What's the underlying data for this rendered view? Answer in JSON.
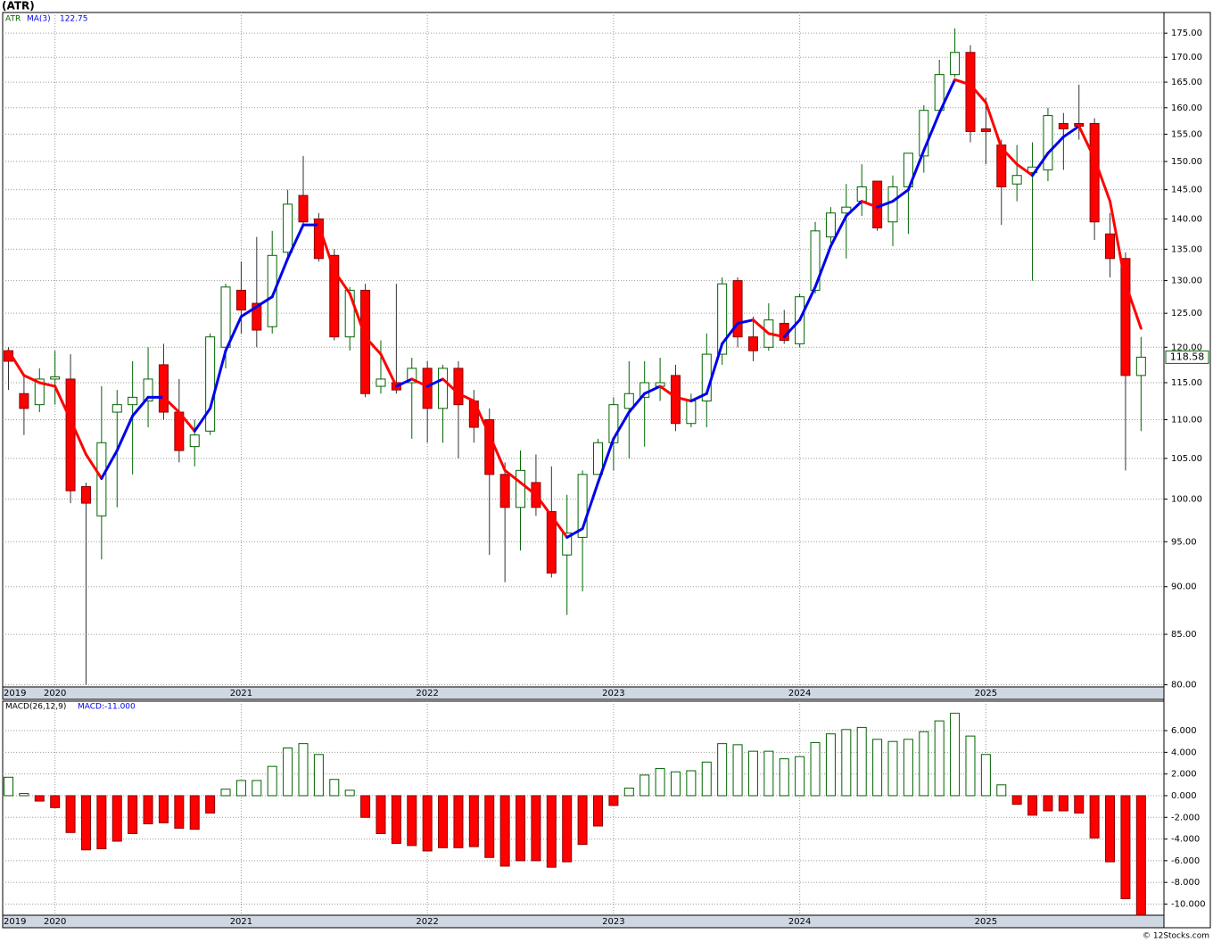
{
  "chart_data": {
    "type": "candlestick",
    "title": "(ATR)",
    "symbol": "ATR",
    "categories": [
      "2019",
      null,
      null,
      "2020",
      null,
      null,
      null,
      null,
      null,
      null,
      null,
      null,
      null,
      null,
      null,
      "2021",
      null,
      null,
      null,
      null,
      null,
      null,
      null,
      null,
      null,
      null,
      null,
      "2022",
      null,
      null,
      null,
      null,
      null,
      null,
      null,
      null,
      null,
      null,
      null,
      "2023",
      null,
      null,
      null,
      null,
      null,
      null,
      null,
      null,
      null,
      null,
      null,
      "2024",
      null,
      null,
      null,
      null,
      null,
      null,
      null,
      null,
      null,
      null,
      null,
      "2025",
      null,
      null,
      null,
      null,
      null,
      null,
      null,
      null,
      null,
      null
    ],
    "open": [
      119.5,
      113.5,
      112,
      115.5,
      115.5,
      101.5,
      98,
      111,
      112,
      112.5,
      117.5,
      111,
      106.5,
      108.5,
      120,
      128.5,
      126.5,
      123,
      134.5,
      144,
      140,
      134,
      121.5,
      128.5,
      114.5,
      115,
      115,
      117,
      111.5,
      117,
      112.5,
      110,
      103,
      99,
      102,
      98.5,
      93.5,
      95.5,
      103,
      107,
      111.5,
      113,
      114.5,
      116,
      109.5,
      112.5,
      119,
      130,
      121.5,
      120,
      123.5,
      120.5,
      128.5,
      137,
      141,
      143,
      146.5,
      139.5,
      145.5,
      151,
      159.5,
      166.5,
      171,
      156,
      153,
      146,
      148,
      148.5,
      157,
      157,
      157,
      137.5,
      133.5,
      116
    ],
    "high": [
      120,
      116,
      117,
      119.5,
      119,
      102,
      114.5,
      114,
      118,
      120,
      120.5,
      115.5,
      110,
      122,
      129.5,
      133,
      137,
      138,
      145,
      151,
      141,
      135,
      129,
      129.5,
      121,
      129.5,
      118.5,
      118,
      117.5,
      118,
      114,
      111.5,
      104.5,
      106,
      105.5,
      104,
      100.5,
      103.5,
      107.5,
      113,
      118,
      118,
      118.5,
      117.5,
      113.5,
      122,
      130.5,
      130.5,
      124.5,
      126.5,
      125.5,
      128,
      139.5,
      142,
      146,
      149.5,
      146.5,
      147.5,
      151.5,
      160.5,
      169.5,
      176,
      172.5,
      162,
      154,
      153,
      153.5,
      160,
      159,
      164.5,
      158,
      141,
      134.5,
      121.5
    ],
    "low": [
      114,
      108,
      111,
      112,
      99.5,
      80,
      93,
      99,
      103,
      109,
      110,
      104.5,
      104,
      108,
      117,
      122,
      120,
      122,
      133,
      139,
      133,
      121,
      119.5,
      113,
      113.5,
      113.5,
      107.5,
      107,
      107,
      105,
      107,
      93.5,
      90.5,
      94,
      98,
      91,
      87,
      89.5,
      103,
      103.5,
      105,
      106.5,
      112.5,
      108.5,
      109,
      109,
      117.5,
      120,
      118,
      119.5,
      120.5,
      120,
      128,
      136,
      133.5,
      140.5,
      138,
      135.5,
      137.5,
      148,
      158.5,
      166,
      153.5,
      149.5,
      139,
      143,
      130,
      146.5,
      148.5,
      154,
      136.5,
      130.5,
      103.5,
      108.5
    ],
    "close": [
      118,
      111.5,
      115.5,
      115.8,
      101,
      99.5,
      107,
      112,
      113,
      115.5,
      111,
      106,
      108,
      121.5,
      129,
      125.5,
      122.5,
      134,
      142.5,
      139.5,
      133.5,
      121.5,
      128.5,
      113.5,
      115.5,
      114,
      117,
      111.5,
      117,
      112,
      109,
      103,
      99,
      103.5,
      99,
      91.5,
      96,
      103,
      107,
      112,
      113.5,
      115,
      115,
      109.5,
      112.5,
      119,
      129.5,
      121.5,
      119.5,
      124,
      121,
      127.5,
      138,
      141,
      142,
      145.5,
      138.5,
      145.5,
      151.5,
      159.5,
      166.5,
      171,
      155.5,
      155.5,
      145.5,
      147.5,
      149,
      158.5,
      156,
      156.5,
      139.5,
      133.5,
      116,
      118.58
    ],
    "up_color": "#006400",
    "down_color": "#ff0000",
    "log_scale": true,
    "grid": true,
    "ylim": [
      79.8,
      179.4
    ],
    "yticks": [
      {
        "value": 80,
        "label": "80.00"
      },
      {
        "value": 85,
        "label": "85.00"
      },
      {
        "value": 90,
        "label": "90.00"
      },
      {
        "value": 95,
        "label": "95.00"
      },
      {
        "value": 100,
        "label": "100.00"
      },
      {
        "value": 105,
        "label": "105.00"
      },
      {
        "value": 110,
        "label": "110.00"
      },
      {
        "value": 115,
        "label": "115.00"
      },
      {
        "value": 120,
        "label": "120.00"
      },
      {
        "value": 125,
        "label": "125.00"
      },
      {
        "value": 130,
        "label": "130.00"
      },
      {
        "value": 135,
        "label": "135.00"
      },
      {
        "value": 140,
        "label": "140.00"
      },
      {
        "value": 145,
        "label": "145.00"
      },
      {
        "value": 150,
        "label": "150.00"
      },
      {
        "value": 155,
        "label": "155.00"
      },
      {
        "value": 160,
        "label": "160.00"
      },
      {
        "value": 165,
        "label": "165.00"
      },
      {
        "value": 170,
        "label": "170.00"
      },
      {
        "value": 175,
        "label": "175.00"
      }
    ],
    "ma": {
      "name": "MA(3)",
      "up_color": "#0000ee",
      "down_color": "#ff0000",
      "values": [
        119.5,
        116,
        115,
        114.5,
        110,
        105.5,
        102.5,
        106,
        110.5,
        113,
        113,
        111,
        108.5,
        111.5,
        119.5,
        124.5,
        126,
        127.5,
        133.5,
        139,
        139,
        131.5,
        128,
        121.5,
        119,
        114.5,
        115.5,
        114.5,
        115.5,
        113.5,
        112.5,
        108,
        103.5,
        102,
        100.5,
        98,
        95.5,
        96.5,
        102,
        107.5,
        111,
        113.5,
        114.5,
        113,
        112.5,
        113.5,
        120.5,
        123.5,
        124,
        122,
        121.5,
        124,
        129,
        135.5,
        140.5,
        143,
        142,
        143,
        145,
        152,
        159,
        165.5,
        164.5,
        161,
        152.5,
        149.5,
        147.5,
        151.5,
        154.5,
        156.5,
        150.5,
        143,
        129.5,
        122.75
      ]
    },
    "macd": {
      "type": "bar",
      "name": "MACD(26,12,9)",
      "value_label": "MACD:-11.000",
      "values": [
        1.7,
        0.2,
        -0.5,
        -1.1,
        -3.4,
        -5.0,
        -4.9,
        -4.2,
        -3.5,
        -2.6,
        -2.5,
        -3.0,
        -3.1,
        -1.6,
        0.6,
        1.4,
        1.4,
        2.7,
        4.4,
        4.8,
        3.8,
        1.5,
        0.5,
        -2.0,
        -3.5,
        -4.4,
        -4.6,
        -5.1,
        -4.8,
        -4.8,
        -4.7,
        -5.7,
        -6.5,
        -6.0,
        -6.0,
        -6.6,
        -6.1,
        -4.5,
        -2.8,
        -0.9,
        0.7,
        1.9,
        2.5,
        2.2,
        2.3,
        3.1,
        4.8,
        4.7,
        4.1,
        4.1,
        3.4,
        3.6,
        4.9,
        5.7,
        6.1,
        6.3,
        5.2,
        5.0,
        5.2,
        5.9,
        6.9,
        7.6,
        5.5,
        3.8,
        1.0,
        -0.8,
        -1.8,
        -1.4,
        -1.4,
        -1.6,
        -3.9,
        -6.1,
        -9.5,
        -11.0
      ],
      "ylim": [
        -11.03,
        8.72
      ],
      "yticks": [
        {
          "value": 6,
          "label": "6.000"
        },
        {
          "value": 4,
          "label": "4.000"
        },
        {
          "value": 2,
          "label": "2.000"
        },
        {
          "value": 0,
          "label": "0.000"
        },
        {
          "value": -2,
          "label": "-2.000"
        },
        {
          "value": -4,
          "label": "-4.000"
        },
        {
          "value": -6,
          "label": "-6.000"
        },
        {
          "value": -8,
          "label": "-8.000"
        },
        {
          "value": -10,
          "label": "-10.000"
        }
      ]
    }
  },
  "footer": "© 12Stocks.com"
}
